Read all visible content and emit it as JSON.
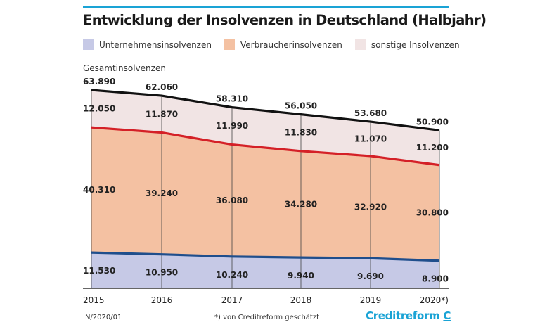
{
  "chart_data": {
    "type": "area",
    "stacked": true,
    "title": "Entwicklung der Insolvenzen in Deutschland (Halbjahr)",
    "ylabel": "Gesamtinsolvenzen",
    "categories": [
      "2015",
      "2016",
      "2017",
      "2018",
      "2019",
      "2020*)"
    ],
    "series": [
      {
        "name": "Unternehmensinsolvenzen",
        "values": [
          11530,
          10950,
          10240,
          9940,
          9690,
          8900
        ],
        "labels": [
          "11.530",
          "10.950",
          "10.240",
          "9.940",
          "9.690",
          "8.900"
        ],
        "color": "#c6c9e6",
        "line_color": "#1f4e8c"
      },
      {
        "name": "Verbraucherinsolvenzen",
        "values": [
          40310,
          39240,
          36080,
          34280,
          32920,
          30800
        ],
        "labels": [
          "40.310",
          "39.240",
          "36.080",
          "34.280",
          "32.920",
          "30.800"
        ],
        "color": "#f4c1a2",
        "line_color": "#d42027"
      },
      {
        "name": "sonstige Insolvenzen",
        "values": [
          12050,
          11870,
          11990,
          11830,
          11070,
          11200
        ],
        "labels": [
          "12.050",
          "11.870",
          "11.990",
          "11.830",
          "11.070",
          "11.200"
        ],
        "color": "#f1e4e4",
        "line_color": "#111111"
      }
    ],
    "totals": {
      "values": [
        63890,
        62060,
        58310,
        56050,
        53680,
        50900
      ],
      "labels": [
        "63.890",
        "62.060",
        "58.310",
        "56.050",
        "53.680",
        "50.900"
      ]
    },
    "ylim": [
      0,
      64000
    ],
    "grid": false,
    "legend_position": "top"
  },
  "footer": {
    "code": "IN/2020/01",
    "note": "*) von Creditreform geschätzt",
    "brand": "Creditreform"
  },
  "colors": {
    "accent": "#1aa3d5"
  }
}
